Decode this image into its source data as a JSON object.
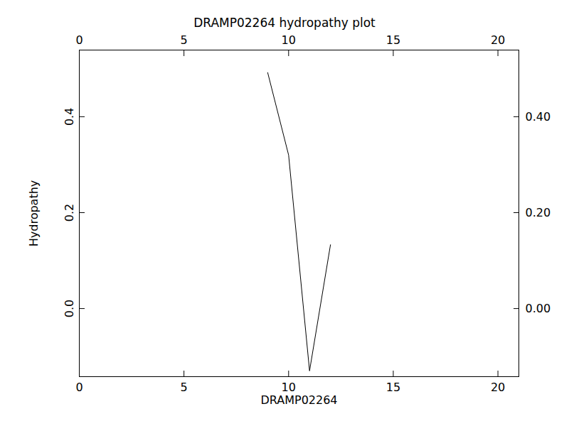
{
  "chart_data": {
    "type": "line",
    "title": "DRAMP02264 hydropathy plot",
    "x_label": "DRAMP02264",
    "y_label": "Hydropathy",
    "x": [
      9,
      10,
      11,
      12
    ],
    "values": [
      0.492,
      0.32,
      -0.13,
      0.133
    ],
    "color": "#000000",
    "xlim": [
      0,
      21
    ],
    "xticks": [
      0,
      5,
      10,
      15,
      20
    ],
    "ylim": [
      -0.142,
      0.539
    ],
    "yticks": [
      {
        "value": 0,
        "label": "0.0"
      },
      0.2,
      0.4
    ],
    "grid": false
  }
}
